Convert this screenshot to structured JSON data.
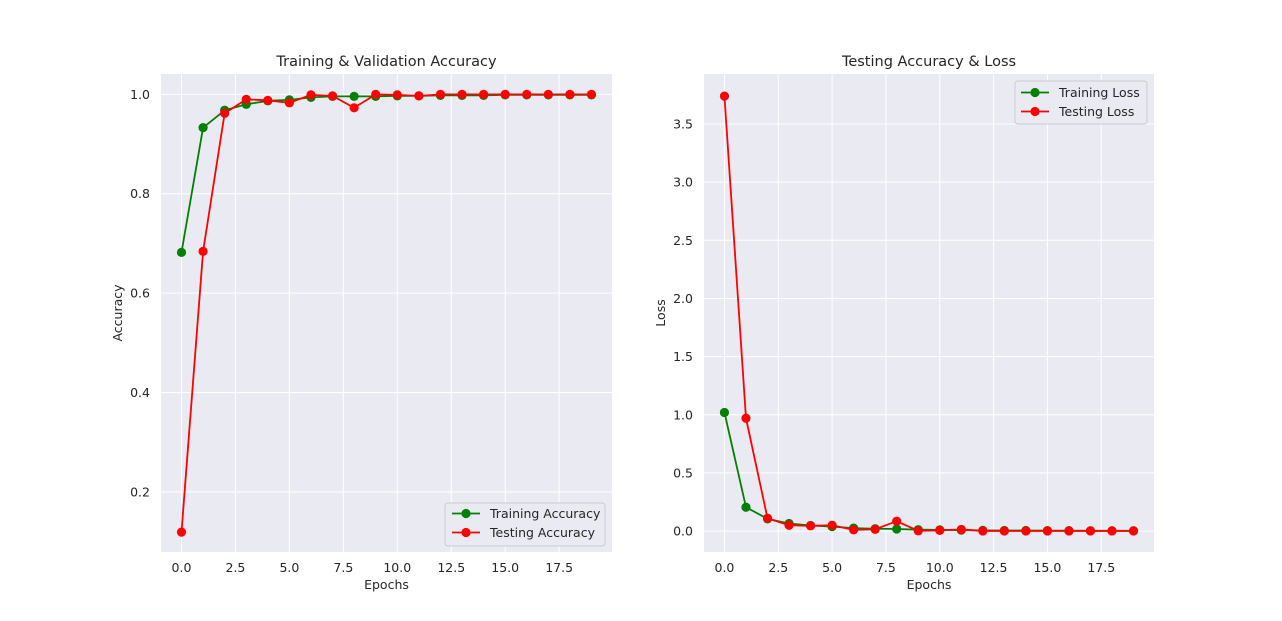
{
  "colors": {
    "plot_background": "#EAEAF2",
    "grid": "#FFFFFF",
    "text": "#262626",
    "training": "#008000",
    "testing": "#FF0000"
  },
  "chart_data": [
    {
      "type": "line",
      "title": "Training & Validation Accuracy",
      "xlabel": "Epochs",
      "ylabel": "Accuracy",
      "xlim": [
        -0.95,
        19.95
      ],
      "ylim": [
        0.079,
        1.041
      ],
      "xticks": [
        0,
        2.5,
        5,
        7.5,
        10,
        12.5,
        15,
        17.5
      ],
      "xtick_labels": [
        "0.0",
        "2.5",
        "5.0",
        "7.5",
        "10.0",
        "12.5",
        "15.0",
        "17.5"
      ],
      "yticks": [
        0.2,
        0.4,
        0.6,
        0.8,
        1.0
      ],
      "ytick_labels": [
        "0.2",
        "0.4",
        "0.6",
        "0.8",
        "1.0"
      ],
      "grid": true,
      "legend_position": "lower-right",
      "x": [
        0,
        1,
        2,
        3,
        4,
        5,
        6,
        7,
        8,
        9,
        10,
        11,
        12,
        13,
        14,
        15,
        16,
        17,
        18,
        19
      ],
      "series": [
        {
          "name": "Training Accuracy",
          "color": "#008000",
          "values": [
            0.682,
            0.933,
            0.968,
            0.98,
            0.987,
            0.989,
            0.994,
            0.996,
            0.996,
            0.996,
            0.997,
            0.997,
            0.998,
            0.998,
            0.998,
            0.999,
            0.999,
            0.999,
            0.999,
            0.999
          ]
        },
        {
          "name": "Testing Accuracy",
          "color": "#FF0000",
          "values": [
            0.119,
            0.684,
            0.962,
            0.99,
            0.988,
            0.983,
            0.999,
            0.997,
            0.973,
            1.0,
            0.999,
            0.997,
            1.0,
            1.0,
            1.0,
            1.0,
            1.0,
            1.0,
            1.0,
            1.0
          ]
        }
      ]
    },
    {
      "type": "line",
      "title": "Testing Accuracy & Loss",
      "xlabel": "Epochs",
      "ylabel": "Loss",
      "xlim": [
        -0.95,
        19.95
      ],
      "ylim": [
        -0.18,
        3.93
      ],
      "xticks": [
        0,
        2.5,
        5,
        7.5,
        10,
        12.5,
        15,
        17.5
      ],
      "xtick_labels": [
        "0.0",
        "2.5",
        "5.0",
        "7.5",
        "10.0",
        "12.5",
        "15.0",
        "17.5"
      ],
      "yticks": [
        0,
        0.5,
        1.0,
        1.5,
        2.0,
        2.5,
        3.0,
        3.5
      ],
      "ytick_labels": [
        "0.0",
        "0.5",
        "1.0",
        "1.5",
        "2.0",
        "2.5",
        "3.0",
        "3.5"
      ],
      "grid": true,
      "legend_position": "upper-right",
      "x": [
        0,
        1,
        2,
        3,
        4,
        5,
        6,
        7,
        8,
        9,
        10,
        11,
        12,
        13,
        14,
        15,
        16,
        17,
        18,
        19
      ],
      "series": [
        {
          "name": "Training Loss",
          "color": "#008000",
          "values": [
            1.02,
            0.205,
            0.105,
            0.065,
            0.048,
            0.038,
            0.025,
            0.02,
            0.018,
            0.012,
            0.01,
            0.008,
            0.006,
            0.005,
            0.005,
            0.004,
            0.004,
            0.003,
            0.003,
            0.003
          ]
        },
        {
          "name": "Testing Loss",
          "color": "#FF0000",
          "values": [
            3.74,
            0.97,
            0.11,
            0.05,
            0.045,
            0.05,
            0.01,
            0.015,
            0.085,
            0.002,
            0.006,
            0.014,
            0.001,
            0.001,
            0.001,
            0.001,
            0.001,
            0.001,
            0.001,
            0.001
          ]
        }
      ]
    }
  ]
}
